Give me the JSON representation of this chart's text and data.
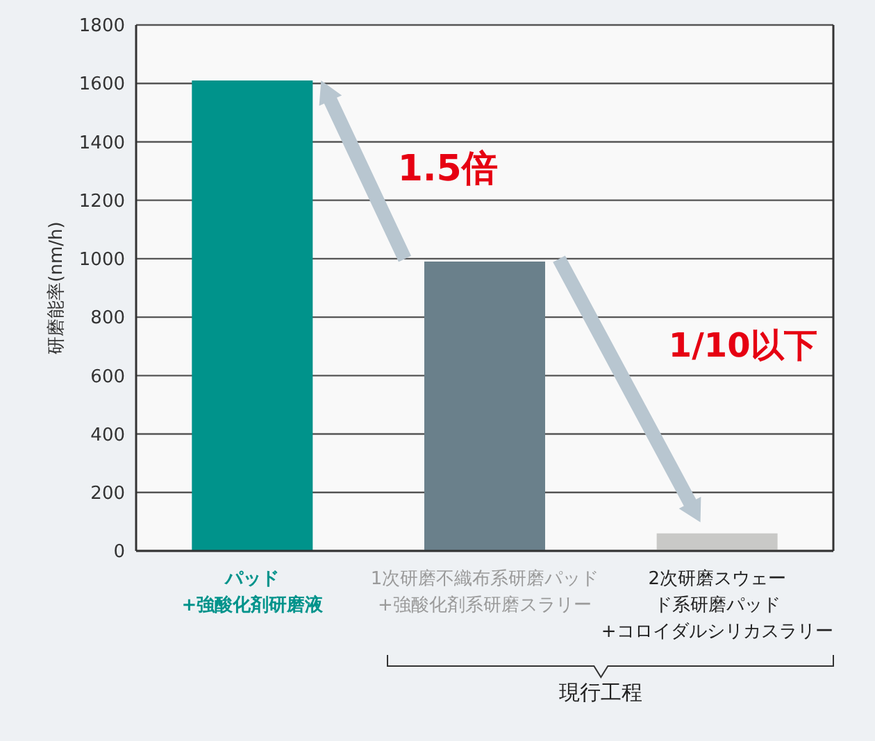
{
  "chart_data": {
    "type": "bar",
    "ylabel": "研磨能率(nm/h)",
    "categories": [
      "パッド+強酸化剤研磨液",
      "1次研磨不織布系研磨パッド+強酸化剤系研磨スラリー",
      "2次研磨スウェード系研磨パッド+コロイダルシリカスラリー"
    ],
    "values": [
      1610,
      990,
      60
    ],
    "colors": [
      "#00938b",
      "#6a808b",
      "#c9c9c7"
    ],
    "ylim": [
      0,
      1800
    ],
    "yticks": [
      0,
      200,
      400,
      600,
      800,
      1000,
      1200,
      1400,
      1600,
      1800
    ],
    "grid": "y",
    "annotations": [
      "1.5倍",
      "1/10以下",
      "現行工程"
    ]
  }
}
